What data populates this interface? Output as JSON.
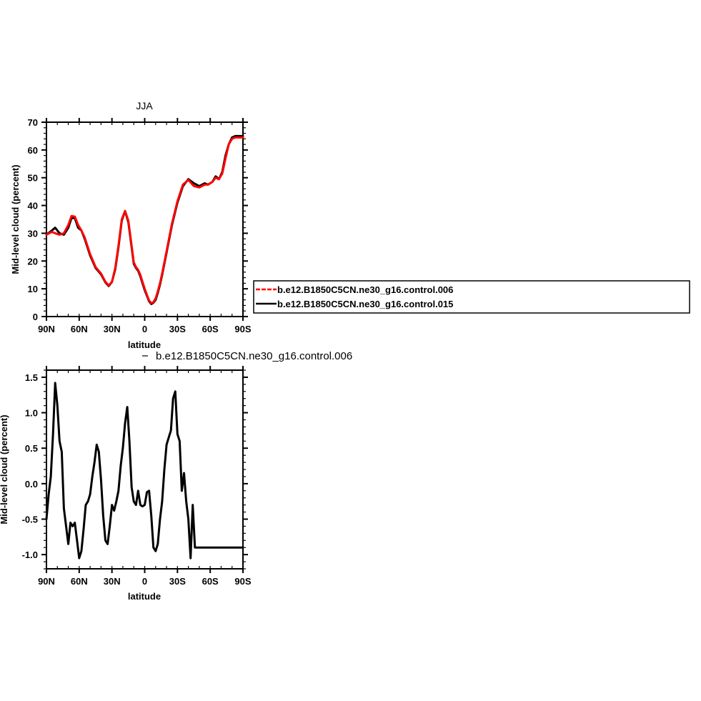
{
  "chart_data": [
    {
      "type": "line",
      "title": "JJA",
      "xlabel": "latitude",
      "ylabel": "Mid-level cloud (percent)",
      "xlim": [
        -90,
        90
      ],
      "ylim": [
        0,
        70
      ],
      "x_ticks": [
        -90,
        -60,
        -30,
        0,
        30,
        60,
        90
      ],
      "x_tick_labels": [
        "90N",
        "60N",
        "30N",
        "0",
        "30S",
        "60S",
        "90S"
      ],
      "y_ticks": [
        0,
        10,
        20,
        30,
        40,
        50,
        60,
        70
      ],
      "y_tick_labels": [
        "0",
        "10",
        "20",
        "30",
        "40",
        "50",
        "60",
        "70"
      ],
      "legend_position": "right",
      "series": [
        {
          "name": "b.e12.B1850C5CN.ne30_g16.control.015",
          "color": "#000000",
          "x": [
            -90,
            -85,
            -82,
            -78,
            -74,
            -70,
            -67,
            -64,
            -61,
            -58,
            -55,
            -50,
            -45,
            -40,
            -36,
            -33,
            -30,
            -27,
            -24,
            -21,
            -18,
            -15,
            -12,
            -10,
            -8,
            -6,
            -4,
            -2,
            0,
            2,
            4,
            6,
            8,
            10,
            12,
            14,
            16,
            18,
            20,
            22,
            25,
            30,
            35,
            40,
            45,
            50,
            55,
            58,
            62,
            65,
            68,
            71,
            74,
            77,
            80,
            83,
            86,
            88,
            90
          ],
          "y": [
            29.5,
            31,
            32,
            30,
            29.5,
            32,
            35.5,
            35.5,
            32,
            31,
            28,
            22,
            17.5,
            15.2,
            12.3,
            11,
            12.5,
            17,
            25,
            34.5,
            38,
            34,
            25,
            19,
            17.5,
            16.5,
            14.5,
            12,
            9.5,
            7.5,
            5.5,
            4.5,
            5,
            6,
            8.5,
            11.5,
            15,
            19,
            23,
            27,
            33,
            41,
            47,
            49.5,
            48,
            47,
            48,
            47.5,
            48.5,
            50.5,
            49.5,
            52,
            58,
            62,
            64.5,
            65,
            65,
            65,
            65
          ]
        },
        {
          "name": "b.e12.B1850C5CN.ne30_g16.control.006",
          "color": "#ff0000",
          "x": [
            -90,
            -85,
            -82,
            -78,
            -74,
            -70,
            -67,
            -64,
            -61,
            -58,
            -55,
            -50,
            -45,
            -40,
            -36,
            -33,
            -30,
            -27,
            -24,
            -21,
            -18,
            -15,
            -12,
            -10,
            -8,
            -6,
            -4,
            -2,
            0,
            2,
            4,
            6,
            8,
            10,
            12,
            14,
            16,
            18,
            20,
            22,
            25,
            30,
            35,
            40,
            45,
            50,
            55,
            58,
            62,
            65,
            68,
            71,
            74,
            77,
            80,
            83,
            86,
            88,
            90
          ],
          "y": [
            29.5,
            30.5,
            30,
            29.5,
            30,
            33,
            36.2,
            36,
            33,
            31,
            28.5,
            22.5,
            17.8,
            15.5,
            12.5,
            11.2,
            12.5,
            17.5,
            25.5,
            35,
            38,
            34.5,
            25.5,
            19.5,
            17.8,
            16.8,
            15,
            12.5,
            10,
            7.8,
            5.8,
            4.8,
            5.2,
            6.5,
            9,
            12,
            15.5,
            19.5,
            23.5,
            27.5,
            33.5,
            41.5,
            47.5,
            49.2,
            47,
            46.5,
            47.5,
            47.5,
            48.5,
            50,
            49.5,
            51.5,
            57,
            62,
            64,
            64.5,
            64.5,
            64.5,
            64.5
          ]
        }
      ]
    },
    {
      "type": "line",
      "title": "b.e12.B1850C5CN.ne30_g16.control.006",
      "xlabel": "latitude",
      "ylabel": "Mid-level cloud (percent)",
      "xlim": [
        -90,
        90
      ],
      "ylim": [
        -1.2,
        1.6
      ],
      "x_ticks": [
        -90,
        -60,
        -30,
        0,
        30,
        60,
        90
      ],
      "x_tick_labels": [
        "90N",
        "60N",
        "30N",
        "0",
        "30S",
        "60S",
        "90S"
      ],
      "y_ticks": [
        -1.0,
        -0.5,
        0.0,
        0.5,
        1.0,
        1.5
      ],
      "y_tick_labels": [
        "-1.0",
        "-0.5",
        "0.0",
        "0.5",
        "1.0",
        "1.5"
      ],
      "series": [
        {
          "name": "b.e12.B1850C5CN.ne30_g16.control.006",
          "color": "#000000",
          "x": [
            -90,
            -88,
            -86,
            -84,
            -82,
            -80,
            -78,
            -76,
            -74,
            -72,
            -70,
            -68,
            -66,
            -64,
            -62,
            -60,
            -58,
            -56,
            -54,
            -52,
            -50,
            -48,
            -46,
            -44,
            -42,
            -40,
            -38,
            -36,
            -34,
            -32,
            -30,
            -28,
            -26,
            -24,
            -22,
            -20,
            -18,
            -16,
            -14,
            -12,
            -10,
            -8,
            -6,
            -4,
            -2,
            0,
            2,
            4,
            6,
            8,
            10,
            12,
            14,
            16,
            18,
            20,
            22,
            24,
            26,
            28,
            30,
            32,
            34,
            36,
            38,
            40,
            42,
            44,
            46,
            48,
            50,
            52,
            54,
            56,
            58,
            60,
            62,
            64,
            66,
            68,
            70,
            72,
            74,
            76,
            78,
            80,
            82,
            84,
            86,
            88,
            90
          ],
          "y": [
            -0.5,
            -0.15,
            0.1,
            0.7,
            1.42,
            1.1,
            0.6,
            0.45,
            -0.35,
            -0.6,
            -0.85,
            -0.55,
            -0.6,
            -0.55,
            -0.8,
            -1.05,
            -0.95,
            -0.65,
            -0.3,
            -0.25,
            -0.15,
            0.1,
            0.3,
            0.55,
            0.45,
            0.05,
            -0.45,
            -0.8,
            -0.85,
            -0.6,
            -0.3,
            -0.38,
            -0.25,
            -0.1,
            0.25,
            0.5,
            0.85,
            1.08,
            0.6,
            -0.05,
            -0.25,
            -0.3,
            -0.1,
            -0.3,
            -0.32,
            -0.3,
            -0.12,
            -0.1,
            -0.45,
            -0.9,
            -0.95,
            -0.85,
            -0.5,
            -0.25,
            0.2,
            0.55,
            0.65,
            0.75,
            1.2,
            1.3,
            0.7,
            0.6,
            -0.1,
            0.15,
            -0.25,
            -0.5,
            -1.05,
            -0.3,
            -0.9,
            -0.9,
            -0.9,
            -0.9,
            -0.9,
            -0.9,
            -0.9,
            -0.9,
            -0.9,
            -0.9,
            -0.9,
            -0.9,
            -0.9,
            -0.9,
            -0.9,
            -0.9,
            -0.9,
            -0.9,
            -0.9,
            -0.9,
            -0.9,
            -0.9,
            -0.9
          ]
        }
      ]
    }
  ]
}
